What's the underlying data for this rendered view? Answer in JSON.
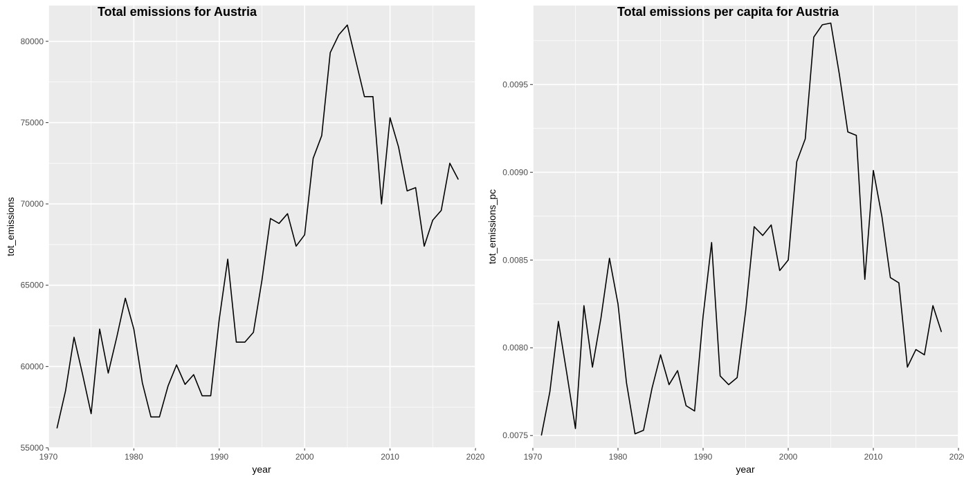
{
  "chart_data": [
    {
      "type": "line",
      "title": "Total emissions for Austria",
      "xlabel": "year",
      "ylabel": "tot_emissions",
      "xlim": [
        1970,
        2020
      ],
      "ylim": [
        55000,
        82200
      ],
      "x_ticks": [
        1970,
        1980,
        1990,
        2000,
        2010,
        2020
      ],
      "x_tick_labels": [
        "1970",
        "1980",
        "1990",
        "2000",
        "2010",
        "2020"
      ],
      "y_ticks": [
        55000,
        60000,
        65000,
        70000,
        75000,
        80000
      ],
      "y_tick_labels": [
        "55000",
        "60000",
        "65000",
        "70000",
        "75000",
        "80000"
      ],
      "grid": true,
      "x": [
        1971,
        1972,
        1973,
        1974,
        1975,
        1976,
        1977,
        1978,
        1979,
        1980,
        1981,
        1982,
        1983,
        1984,
        1985,
        1986,
        1987,
        1988,
        1989,
        1990,
        1991,
        1992,
        1993,
        1994,
        1995,
        1996,
        1997,
        1998,
        1999,
        2000,
        2001,
        2002,
        2003,
        2004,
        2005,
        2006,
        2007,
        2008,
        2009,
        2010,
        2011,
        2012,
        2013,
        2014,
        2015,
        2016,
        2017,
        2018
      ],
      "y": [
        56200,
        58500,
        61800,
        59500,
        57100,
        62300,
        59600,
        61800,
        64200,
        62300,
        59000,
        56900,
        56900,
        58800,
        60100,
        58900,
        59500,
        58200,
        58200,
        62900,
        66600,
        61500,
        61500,
        62100,
        65300,
        69100,
        68800,
        69400,
        67400,
        68100,
        72800,
        74200,
        79300,
        80400,
        81000,
        78800,
        76600,
        76600,
        70000,
        75300,
        73500,
        70800,
        71000,
        67400,
        69000,
        69600,
        72500,
        71500
      ]
    },
    {
      "type": "line",
      "title": "Total emissions per capita for Austria",
      "xlabel": "year",
      "ylabel": "tot_emissions_pc",
      "xlim": [
        1970,
        2020
      ],
      "ylim": [
        0.00743,
        0.00995
      ],
      "x_ticks": [
        1970,
        1980,
        1990,
        2000,
        2010,
        2020
      ],
      "x_tick_labels": [
        "1970",
        "1980",
        "1990",
        "2000",
        "2010",
        "2020"
      ],
      "y_ticks": [
        0.0075,
        0.008,
        0.0085,
        0.009,
        0.0095
      ],
      "y_tick_labels": [
        "0.0075",
        "0.0080",
        "0.0085",
        "0.0090",
        "0.0095"
      ],
      "grid": true,
      "x": [
        1971,
        1972,
        1973,
        1974,
        1975,
        1976,
        1977,
        1978,
        1979,
        1980,
        1981,
        1982,
        1983,
        1984,
        1985,
        1986,
        1987,
        1988,
        1989,
        1990,
        1991,
        1992,
        1993,
        1994,
        1995,
        1996,
        1997,
        1998,
        1999,
        2000,
        2001,
        2002,
        2003,
        2004,
        2005,
        2006,
        2007,
        2008,
        2009,
        2010,
        2011,
        2012,
        2013,
        2014,
        2015,
        2016,
        2017,
        2018
      ],
      "y": [
        0.0075,
        0.00775,
        0.00815,
        0.00785,
        0.00754,
        0.00824,
        0.00789,
        0.00817,
        0.00851,
        0.00825,
        0.0078,
        0.00751,
        0.00753,
        0.00777,
        0.00796,
        0.00779,
        0.00787,
        0.00767,
        0.00764,
        0.00818,
        0.0086,
        0.00784,
        0.00779,
        0.00783,
        0.00821,
        0.00869,
        0.00864,
        0.0087,
        0.00844,
        0.0085,
        0.00906,
        0.00919,
        0.00977,
        0.00984,
        0.00985,
        0.00956,
        0.00923,
        0.00921,
        0.00839,
        0.00901,
        0.00875,
        0.0084,
        0.00837,
        0.00789,
        0.00799,
        0.00796,
        0.00824,
        0.00809
      ]
    }
  ]
}
